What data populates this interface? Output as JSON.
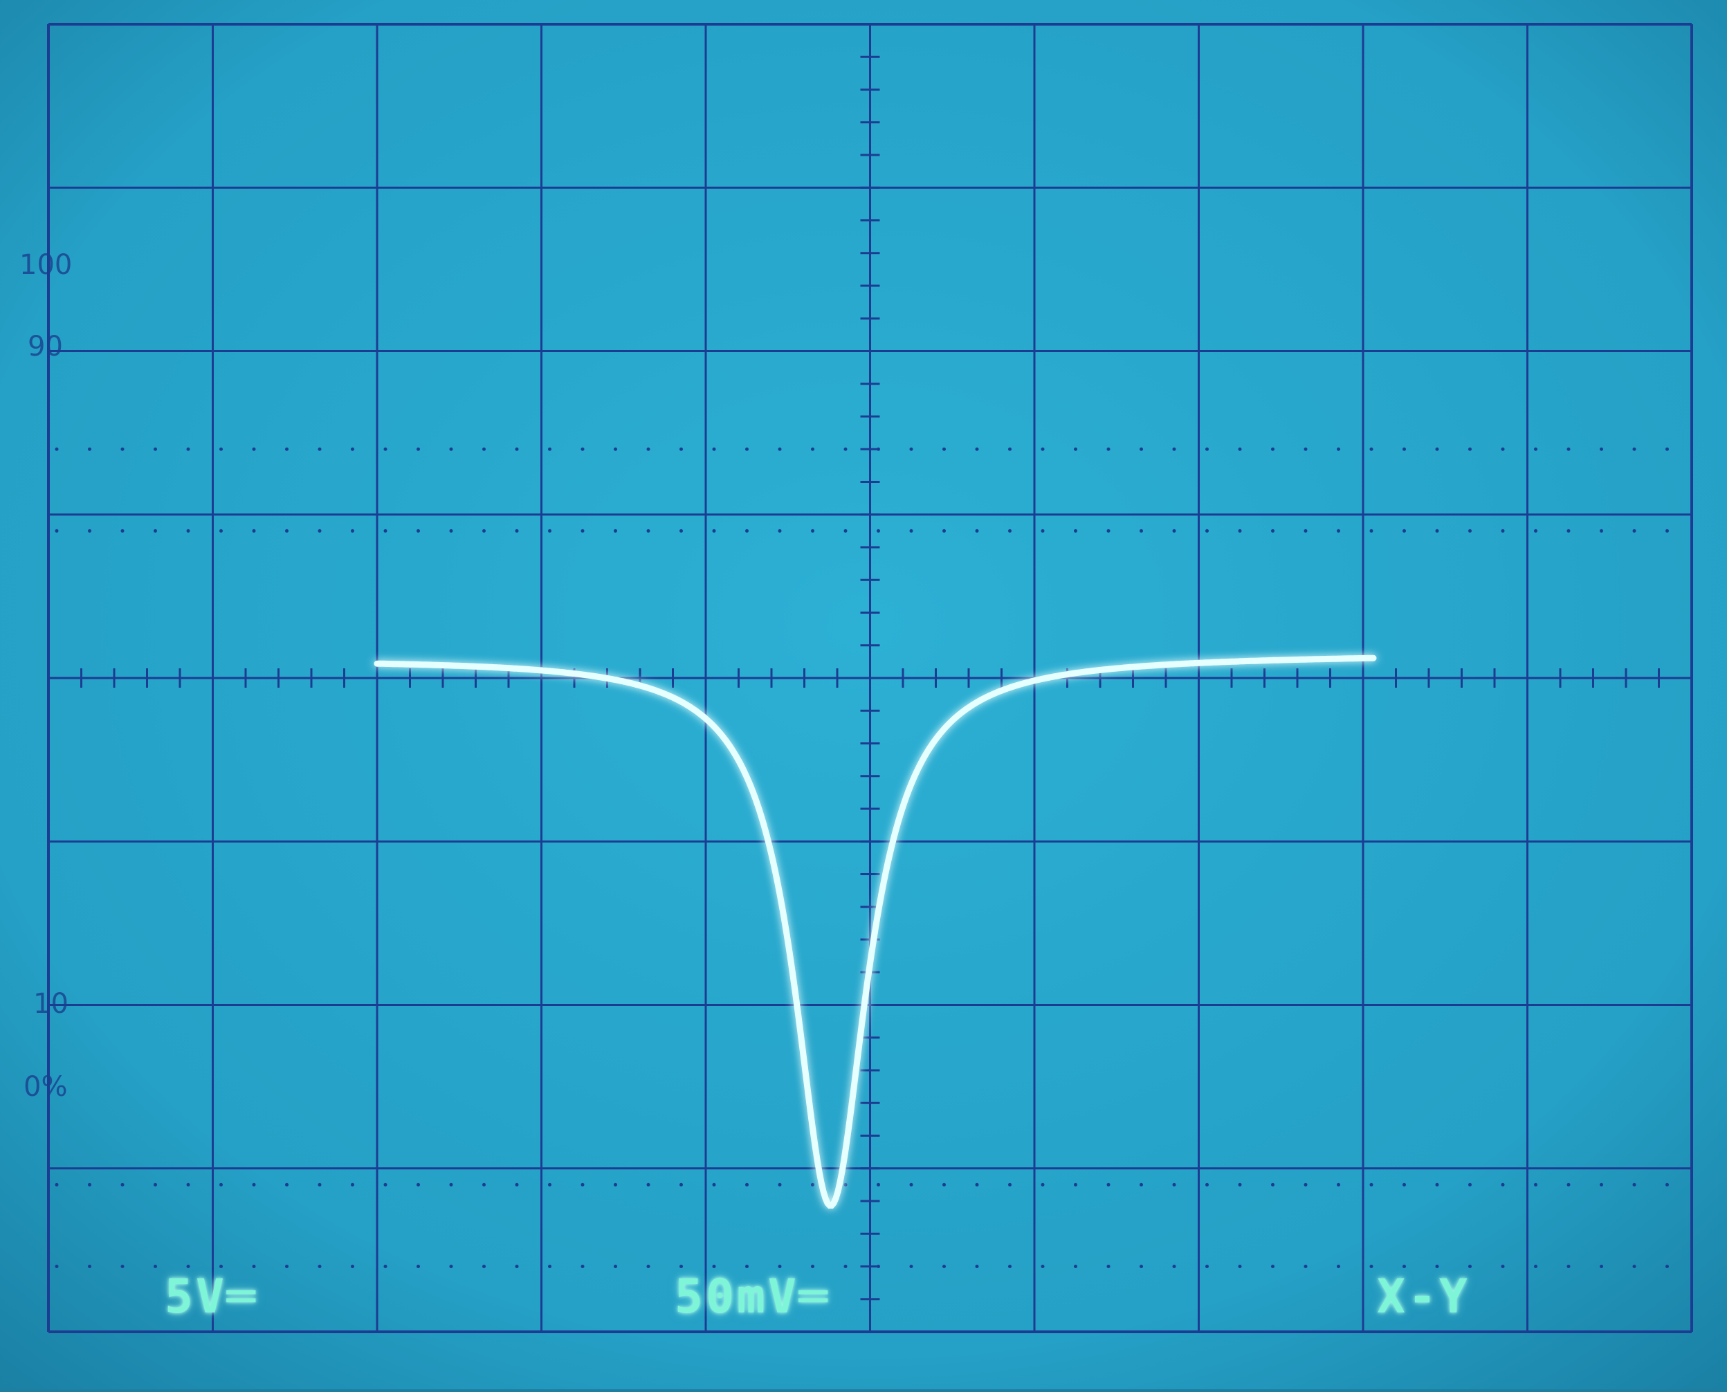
{
  "graticule": {
    "label_100": "100",
    "label_90": "90",
    "label_10": "10",
    "label_0": "0%"
  },
  "readout": {
    "ch1_scale": "5V═",
    "ch2_scale": "50mV═",
    "mode": "X-Y"
  },
  "colors": {
    "screen": "#28a3c7",
    "grid": "#1c3c92",
    "trace": "#dfffff",
    "text": "#7ff5d8"
  }
}
